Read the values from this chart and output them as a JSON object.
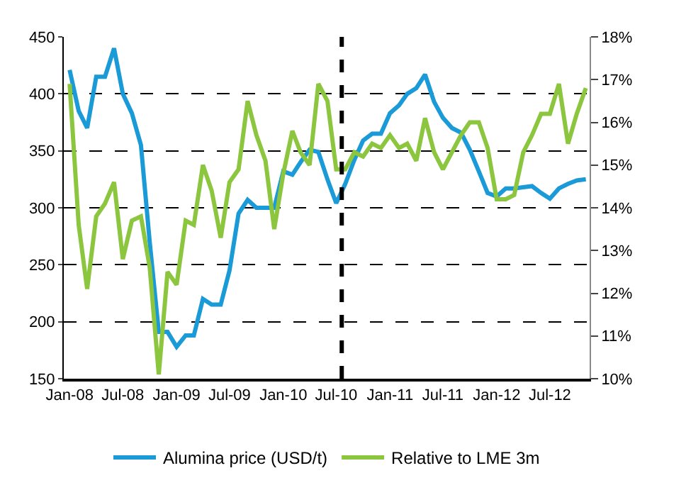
{
  "chart_data": {
    "type": "line",
    "x": [
      "2008-01",
      "2008-02",
      "2008-03",
      "2008-04",
      "2008-05",
      "2008-06",
      "2008-07",
      "2008-08",
      "2008-09",
      "2008-10",
      "2008-11",
      "2008-12",
      "2009-01",
      "2009-02",
      "2009-03",
      "2009-04",
      "2009-05",
      "2009-06",
      "2009-07",
      "2009-08",
      "2009-09",
      "2009-10",
      "2009-11",
      "2009-12",
      "2010-01",
      "2010-02",
      "2010-03",
      "2010-04",
      "2010-05",
      "2010-06",
      "2010-07",
      "2010-08",
      "2010-09",
      "2010-10",
      "2010-11",
      "2010-12",
      "2011-01",
      "2011-02",
      "2011-03",
      "2011-04",
      "2011-05",
      "2011-06",
      "2011-07",
      "2011-08",
      "2011-09",
      "2011-10",
      "2011-11",
      "2011-12",
      "2012-01",
      "2012-02",
      "2012-03",
      "2012-04",
      "2012-05",
      "2012-06",
      "2012-07",
      "2012-08",
      "2012-09",
      "2012-10",
      "2012-11"
    ],
    "series": [
      {
        "name": "Alumina price (USD/t)",
        "color": "#1a9ad6",
        "values": [
          421,
          385,
          370,
          415,
          415,
          440,
          400,
          383,
          355,
          270,
          191,
          191,
          178,
          188,
          188,
          220,
          215,
          215,
          245,
          295,
          307,
          300,
          300,
          300,
          332,
          329,
          340,
          351,
          349,
          325,
          304,
          321,
          342,
          359,
          365,
          365,
          383,
          390,
          400,
          405,
          417,
          393,
          379,
          370,
          366,
          351,
          332,
          313,
          310,
          317,
          317,
          318,
          319,
          313,
          308,
          317,
          321,
          324,
          325
        ]
      },
      {
        "name": "Relative to LME 3m",
        "color": "#8cc63f",
        "axis": "y2",
        "values": [
          16.9,
          13.6,
          12.1,
          13.8,
          14.1,
          14.6,
          12.8,
          13.7,
          13.8,
          12.6,
          10.1,
          12.5,
          12.2,
          13.7,
          13.6,
          15.0,
          14.4,
          13.3,
          14.6,
          14.9,
          16.5,
          15.7,
          15.1,
          13.5,
          14.8,
          15.8,
          15.3,
          15.0,
          16.9,
          16.5,
          14.9,
          14.9,
          15.3,
          15.2,
          15.5,
          15.4,
          15.7,
          15.4,
          15.5,
          15.1,
          16.1,
          15.3,
          14.9,
          15.3,
          15.7,
          16.0,
          16.0,
          15.4,
          14.2,
          14.2,
          14.3,
          15.3,
          15.7,
          16.2,
          16.2,
          16.9,
          15.5,
          16.2,
          16.8
        ]
      }
    ],
    "xlim": [
      "2007-12-12",
      "2012-11-14"
    ],
    "xticks": [
      {
        "value": "2008-01",
        "label": "Jan-08"
      },
      {
        "value": "2008-07",
        "label": "Jul-08"
      },
      {
        "value": "2009-01",
        "label": "Jan-09"
      },
      {
        "value": "2009-07",
        "label": "Jul-09"
      },
      {
        "value": "2010-01",
        "label": "Jan-10"
      },
      {
        "value": "2010-07",
        "label": "Jul-10"
      },
      {
        "value": "2011-01",
        "label": "Jan-11"
      },
      {
        "value": "2011-07",
        "label": "Jul-11"
      },
      {
        "value": "2012-01",
        "label": "Jan-12"
      },
      {
        "value": "2012-07",
        "label": "Jul-12"
      }
    ],
    "ylim": [
      150,
      450
    ],
    "yticks": [
      150,
      200,
      250,
      300,
      350,
      400,
      450
    ],
    "y2lim": [
      10,
      18
    ],
    "y2ticks": [
      {
        "value": 10,
        "label": "10%"
      },
      {
        "value": 11,
        "label": "11%"
      },
      {
        "value": 12,
        "label": "12%"
      },
      {
        "value": 13,
        "label": "13%"
      },
      {
        "value": 14,
        "label": "14%"
      },
      {
        "value": 15,
        "label": "15%"
      },
      {
        "value": 16,
        "label": "16%"
      },
      {
        "value": 17,
        "label": "17%"
      },
      {
        "value": 18,
        "label": "18%"
      }
    ],
    "ref_lines": [
      {
        "axis": "x",
        "value": "2010-07-20",
        "color": "#000000",
        "line_style": "dashed"
      }
    ],
    "grid": "y",
    "legend": "bottom",
    "marker": "none",
    "line_style": "solid"
  }
}
